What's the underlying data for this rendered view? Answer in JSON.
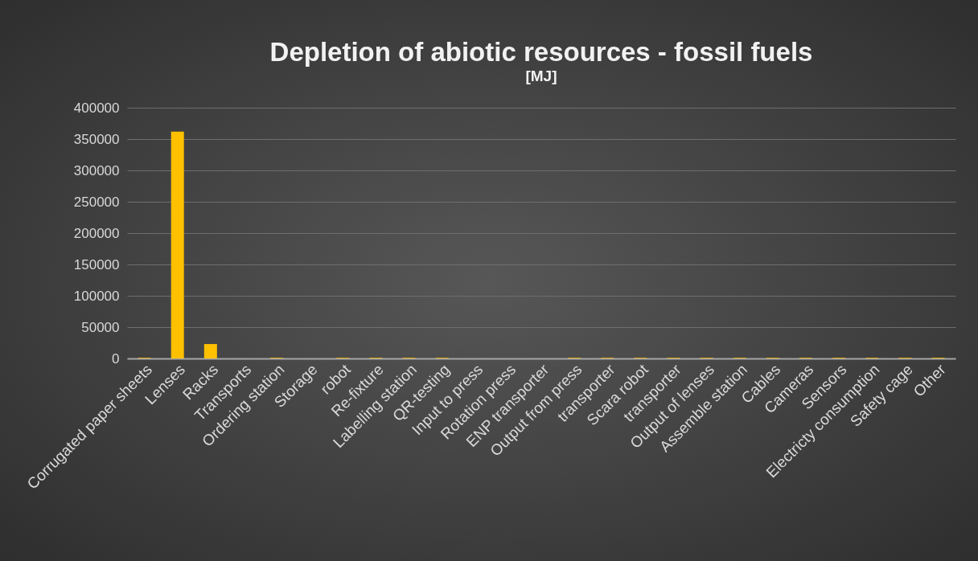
{
  "chart_data": {
    "type": "bar",
    "title": "Depletion of abiotic resources - fossil fuels",
    "subtitle": "[MJ]",
    "categories": [
      "Corrugated paper sheets",
      "Lenses",
      "Racks",
      "Transports",
      "Ordering station",
      "Storage",
      "robot",
      "Re-fixture",
      "Labelling station",
      "QR-testing",
      "Input to press",
      "Rotation press",
      "ENP transporter",
      "Output from press",
      "transporter",
      "Scara robot",
      "transporter",
      "Output of lenses",
      "Assemble station",
      "Cables",
      "Cameras",
      "Sensors",
      "Electricty consumption",
      "Safety cage",
      "Other"
    ],
    "values": [
      1000,
      362000,
      23000,
      0,
      1000,
      0,
      1000,
      1000,
      1000,
      1000,
      0,
      0,
      0,
      1000,
      1000,
      1000,
      1000,
      1000,
      1000,
      1000,
      1000,
      1000,
      1000,
      1000,
      1000
    ],
    "color": "#ffc000",
    "ylim": [
      0,
      400000
    ],
    "yticks": [
      0,
      50000,
      100000,
      150000,
      200000,
      250000,
      300000,
      350000,
      400000
    ],
    "grid": "y"
  }
}
